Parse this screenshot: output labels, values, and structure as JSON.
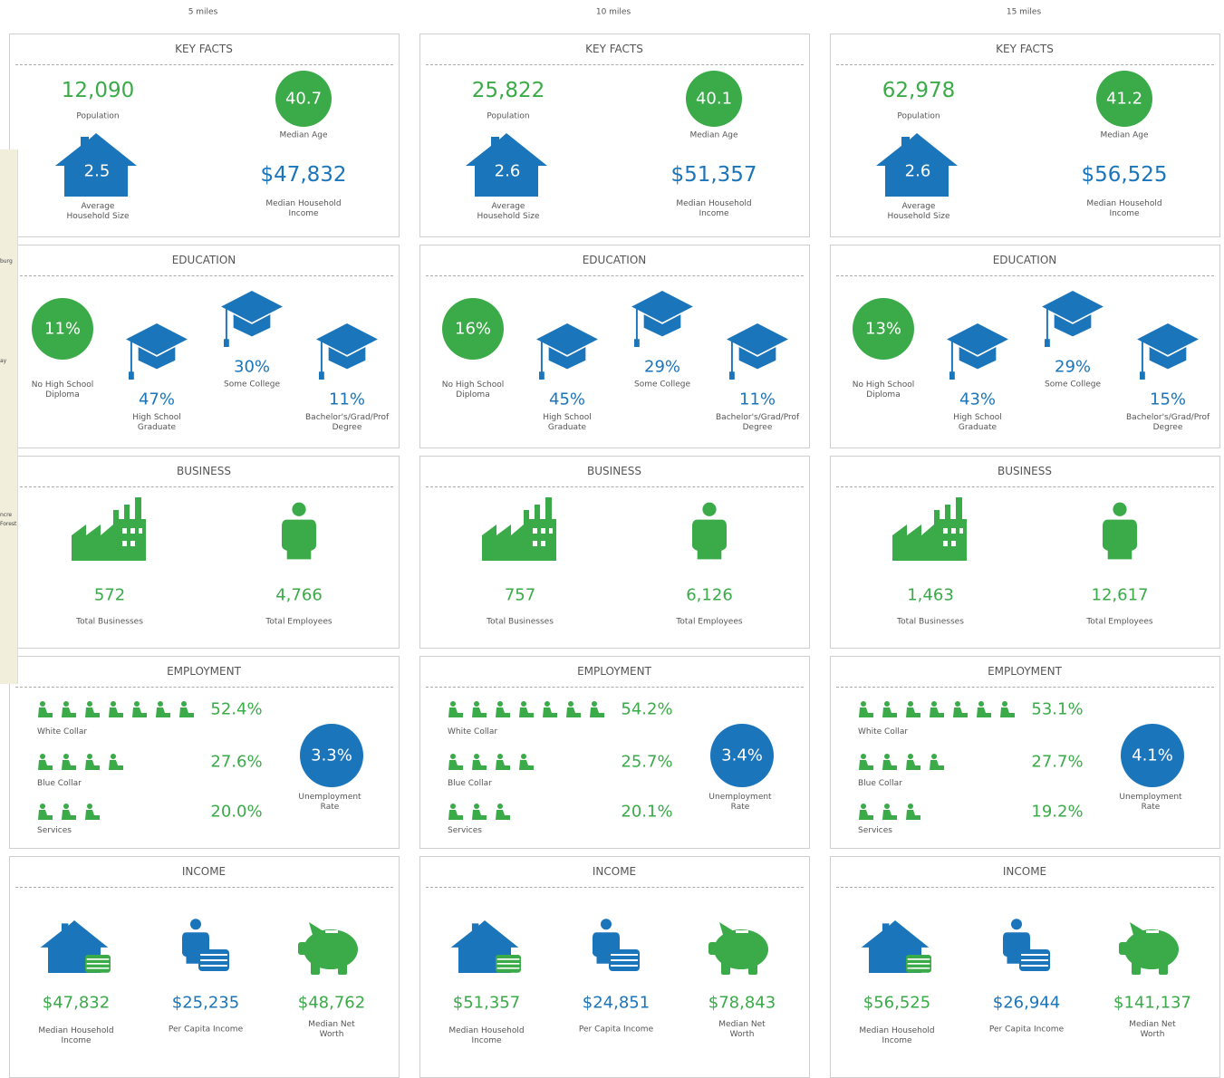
{
  "map": {
    "labels": [
      "burg",
      "ay",
      "ncre",
      "Forest"
    ]
  },
  "sections": {
    "key_facts": "KEY FACTS",
    "education": "EDUCATION",
    "business": "BUSINESS",
    "employment": "EMPLOYMENT",
    "income": "INCOME"
  },
  "labels": {
    "population": "Population",
    "median_age": "Median Age",
    "household_size": "Average Household Size",
    "median_household_income": "Median Household Income",
    "no_high_school": "No High School Diploma",
    "high_school": "High School Graduate",
    "some_college": "Some College",
    "bachelors": "Bachelor's/Grad/Prof Degree",
    "total_businesses": "Total Businesses",
    "total_employees": "Total Employees",
    "white_collar": "White Collar",
    "blue_collar": "Blue Collar",
    "services": "Services",
    "unemployment": "Unemployment Rate",
    "per_capita": "Per Capita Income",
    "net_worth": "Median Net Worth"
  },
  "columns": [
    {
      "radius": "5 miles",
      "population": "12,090",
      "median_age": "40.7",
      "household_size": "2.5",
      "median_household_income": "$47,832",
      "no_high_school": "11%",
      "high_school": "47%",
      "some_college": "30%",
      "bachelors": "11%",
      "total_businesses": "572",
      "total_employees": "4,766",
      "white_collar": "52.4%",
      "blue_collar": "27.6%",
      "services": "20.0%",
      "unemployment": "3.3%",
      "income_median_household": "$47,832",
      "per_capita": "$25,235",
      "net_worth": "$48,762"
    },
    {
      "radius": "10 miles",
      "population": "25,822",
      "median_age": "40.1",
      "household_size": "2.6",
      "median_household_income": "$51,357",
      "no_high_school": "16%",
      "high_school": "45%",
      "some_college": "29%",
      "bachelors": "11%",
      "total_businesses": "757",
      "total_employees": "6,126",
      "white_collar": "54.2%",
      "blue_collar": "25.7%",
      "services": "20.1%",
      "unemployment": "3.4%",
      "income_median_household": "$51,357",
      "per_capita": "$24,851",
      "net_worth": "$78,843"
    },
    {
      "radius": "15 miles",
      "population": "62,978",
      "median_age": "41.2",
      "household_size": "2.6",
      "median_household_income": "$56,525",
      "no_high_school": "13%",
      "high_school": "43%",
      "some_college": "29%",
      "bachelors": "15%",
      "total_businesses": "1,463",
      "total_employees": "12,617",
      "white_collar": "53.1%",
      "blue_collar": "27.7%",
      "services": "19.2%",
      "unemployment": "4.1%",
      "income_median_household": "$56,525",
      "per_capita": "$26,944",
      "net_worth": "$141,137"
    }
  ]
}
